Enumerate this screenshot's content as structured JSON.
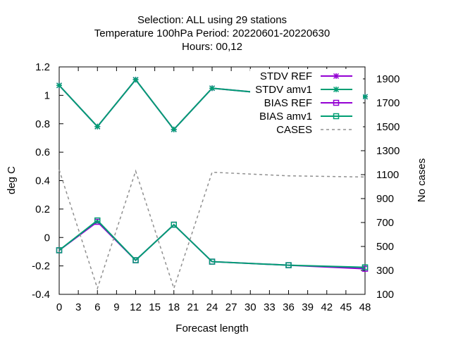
{
  "chart_data": {
    "type": "line",
    "title_lines": [
      "Selection: ALL using    29 stations",
      "Temperature 100hPa   Period: 20220601-20220630",
      "Hours:  00,12"
    ],
    "xlabel": "Forecast length",
    "ylabel": "deg C",
    "y2label": "No cases",
    "xlim": [
      0,
      48
    ],
    "ylim": [
      -0.4,
      1.2
    ],
    "y2lim": [
      100,
      2000
    ],
    "xticks": [
      "0",
      "3",
      "6",
      "9",
      "12",
      "15",
      "18",
      "21",
      "24",
      "27",
      "30",
      "33",
      "36",
      "39",
      "42",
      "45",
      "48"
    ],
    "yticks": [
      "-0.4",
      "-0.2",
      "0",
      "0.2",
      "0.4",
      "0.6",
      "0.8",
      "1",
      "1.2"
    ],
    "y2ticks": [
      "100",
      "300",
      "500",
      "700",
      "900",
      "1100",
      "1300",
      "1500",
      "1700",
      "1900"
    ],
    "grid": false,
    "legend_position": "top-right",
    "x": [
      0,
      6,
      12,
      18,
      24,
      36,
      48
    ],
    "series": [
      {
        "name": "STDV REF",
        "axis": "y",
        "color": "#9400d3",
        "marker": "star",
        "values": [
          1.07,
          0.78,
          1.11,
          0.76,
          1.05,
          1.0,
          0.99
        ]
      },
      {
        "name": "STDV amv1",
        "axis": "y",
        "color": "#009e73",
        "marker": "star",
        "values": [
          1.07,
          0.78,
          1.11,
          0.76,
          1.05,
          1.0,
          0.99
        ]
      },
      {
        "name": "BIAS REF",
        "axis": "y",
        "color": "#9400d3",
        "marker": "square",
        "values": [
          -0.09,
          0.11,
          -0.16,
          0.09,
          -0.17,
          -0.195,
          -0.22
        ]
      },
      {
        "name": "BIAS amv1",
        "axis": "y",
        "color": "#009e73",
        "marker": "square",
        "values": [
          -0.09,
          0.12,
          -0.16,
          0.09,
          -0.17,
          -0.195,
          -0.21
        ]
      },
      {
        "name": "CASES",
        "axis": "y2",
        "color": "#909090",
        "marker": "none",
        "dash": true,
        "values": [
          1140,
          150,
          1130,
          150,
          1120,
          1090,
          1080
        ]
      }
    ]
  }
}
